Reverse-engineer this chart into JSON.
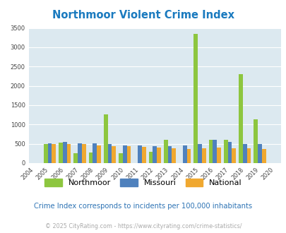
{
  "title": "Northmoor Violent Crime Index",
  "subtitle": "Crime Index corresponds to incidents per 100,000 inhabitants",
  "footer": "© 2025 CityRating.com - https://www.cityrating.com/crime-statistics/",
  "years": [
    2004,
    2005,
    2006,
    2007,
    2008,
    2009,
    2010,
    2011,
    2012,
    2013,
    2014,
    2015,
    2016,
    2017,
    2018,
    2019,
    2020
  ],
  "northmoor": [
    0,
    500,
    530,
    250,
    270,
    1260,
    250,
    0,
    300,
    610,
    0,
    3340,
    610,
    610,
    2310,
    1140,
    0
  ],
  "missouri": [
    0,
    520,
    555,
    510,
    505,
    500,
    460,
    465,
    430,
    430,
    465,
    500,
    605,
    550,
    490,
    490,
    0
  ],
  "national": [
    0,
    500,
    490,
    490,
    460,
    440,
    430,
    420,
    400,
    385,
    370,
    375,
    395,
    385,
    375,
    370,
    0
  ],
  "colors": {
    "northmoor": "#8dc63f",
    "missouri": "#4f81bd",
    "national": "#f0a830"
  },
  "ylim": [
    0,
    3500
  ],
  "yticks": [
    0,
    500,
    1000,
    1500,
    2000,
    2500,
    3000,
    3500
  ],
  "bg_color": "#dce9f0",
  "grid_color": "#ffffff",
  "title_color": "#1a7abf",
  "subtitle_color": "#2e74b5",
  "footer_color": "#aaaaaa",
  "bar_width": 0.27
}
